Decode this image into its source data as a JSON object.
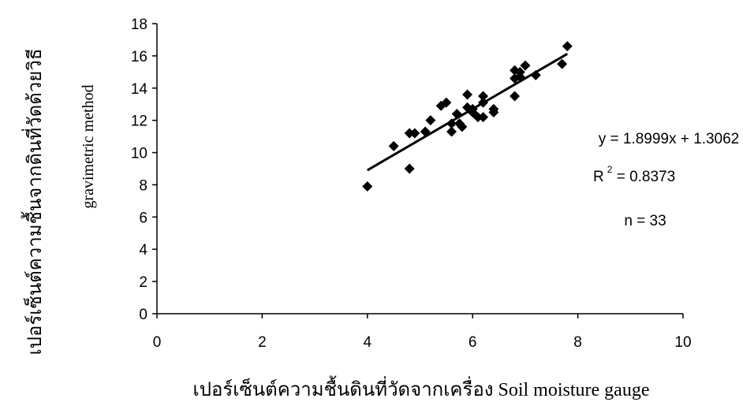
{
  "chart_data": {
    "type": "scatter",
    "xlabel": "เปอร์เซ็นต์ความชื้นดินที่วัดจากเครื่อง Soil moisture gauge",
    "ylabel": "เปอร์เซ็นต์ความชื้นจากดินที่วัดด้วยวิธี",
    "ylabel_line2": "gravimetric method",
    "xlim": [
      0,
      10
    ],
    "ylim": [
      0,
      18
    ],
    "xticks": [
      0,
      2,
      4,
      6,
      8,
      10
    ],
    "yticks": [
      0,
      2,
      4,
      6,
      8,
      10,
      12,
      14,
      16,
      18
    ],
    "grid": false,
    "marker": "diamond",
    "marker_color": "#000000",
    "series": [
      {
        "points": [
          [
            4.0,
            7.9
          ],
          [
            4.5,
            10.4
          ],
          [
            4.8,
            9.0
          ],
          [
            4.8,
            11.2
          ],
          [
            4.9,
            11.2
          ],
          [
            5.1,
            11.3
          ],
          [
            5.2,
            12.0
          ],
          [
            5.4,
            12.9
          ],
          [
            5.5,
            13.1
          ],
          [
            5.6,
            11.3
          ],
          [
            5.6,
            11.8
          ],
          [
            5.7,
            12.4
          ],
          [
            5.75,
            11.8
          ],
          [
            5.8,
            11.6
          ],
          [
            5.9,
            12.8
          ],
          [
            5.9,
            13.6
          ],
          [
            6.0,
            12.5
          ],
          [
            6.0,
            12.7
          ],
          [
            6.1,
            12.2
          ],
          [
            6.2,
            13.1
          ],
          [
            6.2,
            12.2
          ],
          [
            6.2,
            13.5
          ],
          [
            6.4,
            12.5
          ],
          [
            6.4,
            12.7
          ],
          [
            6.8,
            13.5
          ],
          [
            6.8,
            14.6
          ],
          [
            6.8,
            15.1
          ],
          [
            6.9,
            15.0
          ],
          [
            6.9,
            14.7
          ],
          [
            7.0,
            15.4
          ],
          [
            7.2,
            14.8
          ],
          [
            7.7,
            15.5
          ],
          [
            7.8,
            16.6
          ]
        ]
      }
    ],
    "trendline": {
      "slope": 1.8999,
      "intercept": 1.3062,
      "x_range": [
        4.0,
        7.8
      ]
    },
    "annotations": {
      "equation": "y = 1.8999x + 1.3062",
      "r2_prefix": "R",
      "r2_sup": "2",
      "r2_value": " = 0.8373",
      "n": "n = 33"
    }
  }
}
